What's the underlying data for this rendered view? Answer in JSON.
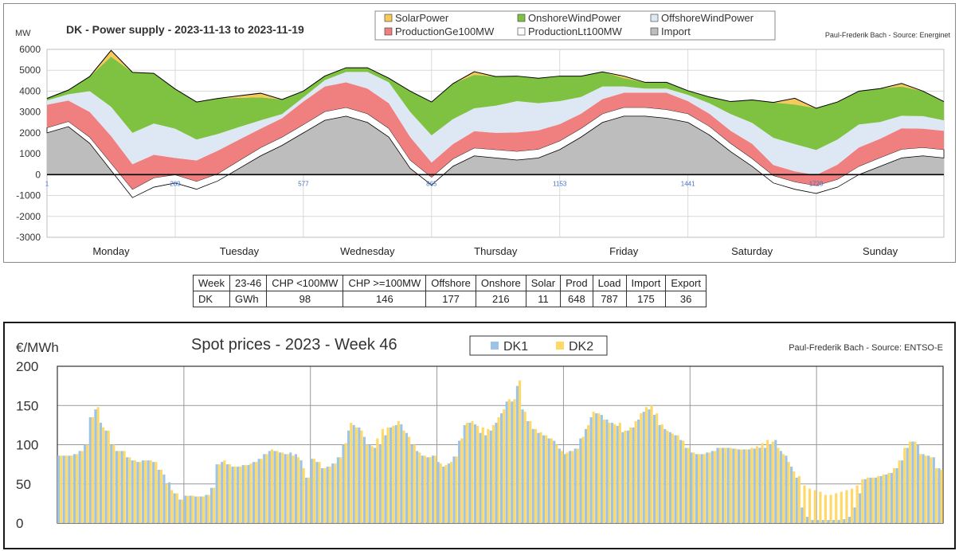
{
  "power_chart": {
    "unit": "MW",
    "title": "DK - Power supply  - 2023-11-13 to 2023-11-19",
    "source": "Paul-Frederik Bach - Source: Energinet",
    "legend": [
      "SolarPower",
      "OnshoreWindPower",
      "OffshoreWindPower",
      "ProductionGe100MW",
      "ProductionLt100MW",
      "Import"
    ],
    "y_ticks": [
      "6000",
      "5000",
      "4000",
      "3000",
      "2000",
      "1000",
      "0",
      "-1000",
      "-2000",
      "-3000"
    ],
    "x_ticks": [
      "1",
      "289",
      "577",
      "865",
      "1153",
      "1441",
      "1729"
    ],
    "days": [
      "Monday",
      "Tuesday",
      "Wednesday",
      "Thursday",
      "Friday",
      "Saturday",
      "Sunday"
    ],
    "colors": {
      "SolarPower": "#f7c95a",
      "OnshoreWindPower": "#7fc241",
      "OffshoreWindPower": "#dde8f4",
      "ProductionGe100MW": "#f08080",
      "ProductionLt100MW": "#ffffff",
      "Import": "#bdbdbd"
    }
  },
  "chart_data": [
    {
      "type": "area",
      "title": "DK - Power supply  - 2023-11-13 to 2023-11-19",
      "ylabel": "MW",
      "ylim": [
        -3000,
        6000
      ],
      "grid": true,
      "legend_position": "top",
      "x": [
        1,
        49,
        97,
        145,
        193,
        241,
        289,
        337,
        385,
        433,
        481,
        529,
        577,
        625,
        673,
        721,
        769,
        817,
        865,
        913,
        961,
        1009,
        1057,
        1105,
        1153,
        1201,
        1249,
        1297,
        1345,
        1393,
        1441,
        1489,
        1537,
        1585,
        1633,
        1681,
        1729,
        1777,
        1825,
        1873,
        1921,
        1969,
        2016
      ],
      "series": [
        {
          "name": "Import",
          "values": [
            2000,
            2300,
            1500,
            200,
            -1100,
            -600,
            -400,
            -700,
            -300,
            300,
            900,
            1400,
            2000,
            2600,
            2800,
            2500,
            1800,
            300,
            -500,
            400,
            900,
            800,
            700,
            800,
            1200,
            1800,
            2500,
            2800,
            2800,
            2700,
            2500,
            1900,
            1100,
            400,
            -400,
            -700,
            -900,
            -600,
            0,
            400,
            800,
            900,
            800
          ]
        },
        {
          "name": "ProductionLt100MW",
          "values": [
            250,
            250,
            300,
            350,
            400,
            450,
            400,
            380,
            350,
            380,
            400,
            400,
            400,
            420,
            420,
            420,
            420,
            400,
            380,
            360,
            380,
            400,
            420,
            420,
            420,
            420,
            420,
            420,
            420,
            420,
            420,
            420,
            400,
            380,
            360,
            360,
            380,
            380,
            400,
            420,
            420,
            400,
            400
          ]
        },
        {
          "name": "ProductionGe100MW",
          "values": [
            1100,
            1000,
            1200,
            1300,
            1200,
            1100,
            800,
            1000,
            1100,
            1000,
            900,
            900,
            1100,
            1200,
            1200,
            1200,
            1200,
            1100,
            700,
            700,
            800,
            800,
            900,
            900,
            800,
            700,
            700,
            700,
            700,
            800,
            600,
            600,
            600,
            700,
            500,
            500,
            500,
            700,
            900,
            900,
            1000,
            900,
            900
          ]
        },
        {
          "name": "OffshoreWindPower",
          "values": [
            200,
            300,
            1000,
            1400,
            1500,
            1500,
            1400,
            1000,
            800,
            600,
            400,
            200,
            200,
            300,
            500,
            800,
            1000,
            1200,
            1300,
            1200,
            1100,
            1300,
            1500,
            1300,
            1100,
            800,
            600,
            300,
            200,
            200,
            300,
            500,
            800,
            1000,
            1300,
            1300,
            1200,
            1200,
            1100,
            800,
            600,
            600,
            500
          ]
        },
        {
          "name": "OnshoreWindPower",
          "values": [
            100,
            200,
            700,
            2400,
            2900,
            2400,
            1900,
            1800,
            1700,
            1400,
            1100,
            700,
            300,
            200,
            200,
            200,
            200,
            1000,
            1600,
            1700,
            1600,
            1400,
            1200,
            1200,
            1200,
            1000,
            700,
            400,
            300,
            300,
            200,
            300,
            600,
            1100,
            1700,
            1900,
            2000,
            1800,
            1600,
            1600,
            1400,
            1200,
            900
          ]
        },
        {
          "name": "SolarPower",
          "values": [
            0,
            0,
            0,
            300,
            0,
            0,
            0,
            0,
            0,
            100,
            200,
            0,
            0,
            0,
            0,
            0,
            0,
            0,
            0,
            0,
            150,
            0,
            0,
            0,
            0,
            0,
            0,
            100,
            0,
            0,
            0,
            0,
            0,
            0,
            0,
            300,
            0,
            0,
            0,
            0,
            150,
            0,
            0
          ]
        }
      ]
    },
    {
      "type": "table",
      "header": [
        "Week",
        "23-46",
        "CHP <100MW",
        "CHP >=100MW",
        "Offshore",
        "Onshore",
        "Solar",
        "Prod",
        "Load",
        "Import",
        "Export"
      ],
      "rows": [
        [
          "DK",
          "GWh",
          "98",
          "146",
          "177",
          "216",
          "11",
          "648",
          "787",
          "175",
          "36"
        ]
      ]
    },
    {
      "type": "bar",
      "title": "Spot prices - 2023 - Week 46",
      "ylabel": "€/MWh",
      "ylim": [
        0,
        200
      ],
      "y_ticks": [
        "200",
        "150",
        "100",
        "50",
        "0"
      ],
      "grid": true,
      "legend_position": "top",
      "source": "Paul-Frederik Bach - Source: ENTSO-E",
      "series": [
        {
          "name": "DK1",
          "color": "#9dc3e6",
          "values": [
            86,
            86,
            86,
            88,
            92,
            100,
            135,
            145,
            128,
            118,
            100,
            92,
            92,
            84,
            80,
            78,
            80,
            80,
            78,
            68,
            62,
            52,
            38,
            30,
            35,
            35,
            34,
            34,
            36,
            45,
            75,
            78,
            75,
            72,
            72,
            74,
            74,
            78,
            82,
            88,
            92,
            92,
            90,
            88,
            90,
            88,
            80,
            58,
            82,
            78,
            70,
            72,
            76,
            84,
            100,
            118,
            125,
            122,
            110,
            100,
            96,
            100,
            112,
            122,
            125,
            126,
            115,
            100,
            92,
            86,
            84,
            86,
            78,
            72,
            76,
            85,
            105,
            125,
            128,
            126,
            115,
            112,
            118,
            128,
            140,
            155,
            155,
            175,
            145,
            130,
            120,
            115,
            112,
            108,
            105,
            95,
            88,
            92,
            95,
            108,
            120,
            135,
            140,
            138,
            132,
            128,
            124,
            116,
            118,
            122,
            132,
            142,
            145,
            138,
            125,
            120,
            116,
            112,
            106,
            96,
            90,
            88,
            88,
            90,
            92,
            96,
            96,
            96,
            95,
            94,
            94,
            94,
            95,
            96,
            96,
            100,
            106,
            92,
            86,
            72,
            58,
            20,
            8,
            4,
            4,
            4,
            4,
            4,
            4,
            5,
            8,
            20,
            38,
            56,
            58,
            58,
            60,
            62,
            64,
            70,
            80,
            96,
            104,
            100,
            88,
            86,
            84,
            70
          ]
        },
        {
          "name": "DK2",
          "color": "#ffd966",
          "values": [
            86,
            86,
            86,
            88,
            92,
            100,
            135,
            148,
            122,
            118,
            100,
            92,
            92,
            84,
            80,
            78,
            80,
            80,
            78,
            68,
            50,
            42,
            38,
            30,
            35,
            35,
            34,
            34,
            36,
            45,
            75,
            80,
            75,
            72,
            72,
            74,
            76,
            78,
            82,
            88,
            94,
            92,
            90,
            88,
            86,
            84,
            70,
            58,
            82,
            78,
            70,
            72,
            76,
            84,
            102,
            128,
            122,
            118,
            100,
            98,
            108,
            120,
            122,
            124,
            130,
            118,
            110,
            100,
            90,
            86,
            84,
            86,
            76,
            74,
            78,
            85,
            108,
            128,
            130,
            124,
            122,
            120,
            125,
            135,
            145,
            158,
            158,
            182,
            142,
            130,
            120,
            116,
            112,
            108,
            100,
            92,
            90,
            92,
            95,
            110,
            125,
            142,
            140,
            132,
            128,
            126,
            128,
            118,
            122,
            130,
            140,
            148,
            150,
            140,
            126,
            118,
            114,
            112,
            105,
            96,
            90,
            88,
            88,
            90,
            92,
            96,
            96,
            96,
            95,
            94,
            94,
            96,
            98,
            102,
            106,
            104,
            96,
            88,
            78,
            66,
            60,
            48,
            44,
            42,
            40,
            36,
            36,
            38,
            40,
            42,
            44,
            48,
            56,
            58,
            58,
            60,
            62,
            64,
            70,
            80,
            96,
            104,
            104,
            88,
            86,
            84,
            70,
            68
          ]
        }
      ]
    }
  ],
  "spot_chart": {
    "unit": "€/MWh",
    "title": "Spot prices - 2023 - Week 46",
    "source": "Paul-Frederik Bach - Source: ENTSO-E",
    "legend": [
      "DK1",
      "DK2"
    ],
    "y_ticks": [
      "200",
      "150",
      "100",
      "50",
      "0"
    ]
  },
  "summary_table": {
    "header": [
      "Week",
      "23-46",
      "CHP <100MW",
      "CHP >=100MW",
      "Offshore",
      "Onshore",
      "Solar",
      "Prod",
      "Load",
      "Import",
      "Export"
    ],
    "row": [
      "DK",
      "GWh",
      "98",
      "146",
      "177",
      "216",
      "11",
      "648",
      "787",
      "175",
      "36"
    ]
  }
}
